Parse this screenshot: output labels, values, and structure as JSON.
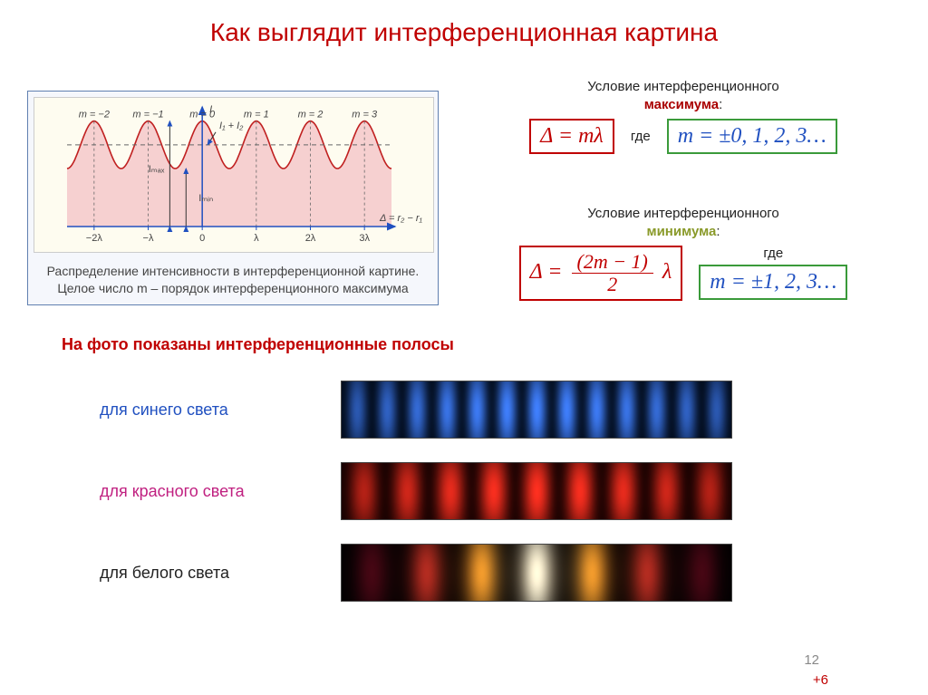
{
  "title": "Как выглядит интерференционная картина",
  "intensity": {
    "caption1": "Распределение интенсивности в интерференционной картине.",
    "caption2": "Целое число m – порядок интерференционного максимума",
    "y_axis": "I",
    "x_axis": "Δ = r₂ − r₁",
    "m_labels": [
      "m = −2",
      "m = −1",
      "m = 0",
      "m = 1",
      "m = 2",
      "m = 3"
    ],
    "x_ticks": [
      "−2λ",
      "−λ",
      "0",
      "λ",
      "2λ",
      "3λ"
    ],
    "sum_label": "I₁ + I₂",
    "imax_label": "Iₘₐₓ",
    "imin_label": "Iₘᵢₙ",
    "curve_color": "#c02020",
    "fill_color": "#f6d0d0",
    "axis_color": "#2050c0",
    "grid_color": "#888888",
    "dash_color": "#666666",
    "bg_color": "#fefcf0",
    "font_color": "#444444",
    "xlim": [
      -2.5,
      3.5
    ],
    "ylim": [
      0,
      1.1
    ],
    "period": 1.0,
    "imax": 1.0,
    "imin": 0.55,
    "midline": 0.775
  },
  "maximum": {
    "label_pre": "Условие интерференционного",
    "label_word": "максимума",
    "formula": "Δ = mλ",
    "where": "где",
    "m_values": "m = ±0, 1, 2, 3…"
  },
  "minimum": {
    "label_pre": "Условие интерференционного",
    "label_word": "минимума",
    "formula_lhs": "Δ =",
    "formula_num": "(2m − 1)",
    "formula_den": "2",
    "formula_rhs": "λ",
    "where": "где",
    "m_values": "m = ±1, 2, 3…"
  },
  "fringes": {
    "header": "На фото показаны интерференционные полосы",
    "blue_label": "для синего света",
    "red_label": "для красного света",
    "white_label": "для белого света",
    "strip_width": 430,
    "strip_height": 62,
    "blue": {
      "color_mid": "#4080ff",
      "color_dark": "#000814",
      "fringe_count": 13,
      "base": 0.12
    },
    "red": {
      "color_mid": "#ff3020",
      "color_dark": "#100000",
      "fringe_count": 9,
      "base": 0.1
    },
    "white": {
      "bg": "#0a0000",
      "center": "#ffffe0",
      "fringe_count": 7,
      "center_width": 28,
      "colors": [
        "#ffffe0",
        "#ffaa30",
        "#ff4030",
        "#a01030"
      ]
    }
  },
  "page_number": "12",
  "page_sub": "+6",
  "colors": {
    "title": "#c00000",
    "accent_red": "#c00000",
    "accent_green": "#3a9a3a",
    "accent_blue": "#2050c0",
    "magenta": "#c02080",
    "text": "#222222",
    "bg": "#ffffff"
  }
}
